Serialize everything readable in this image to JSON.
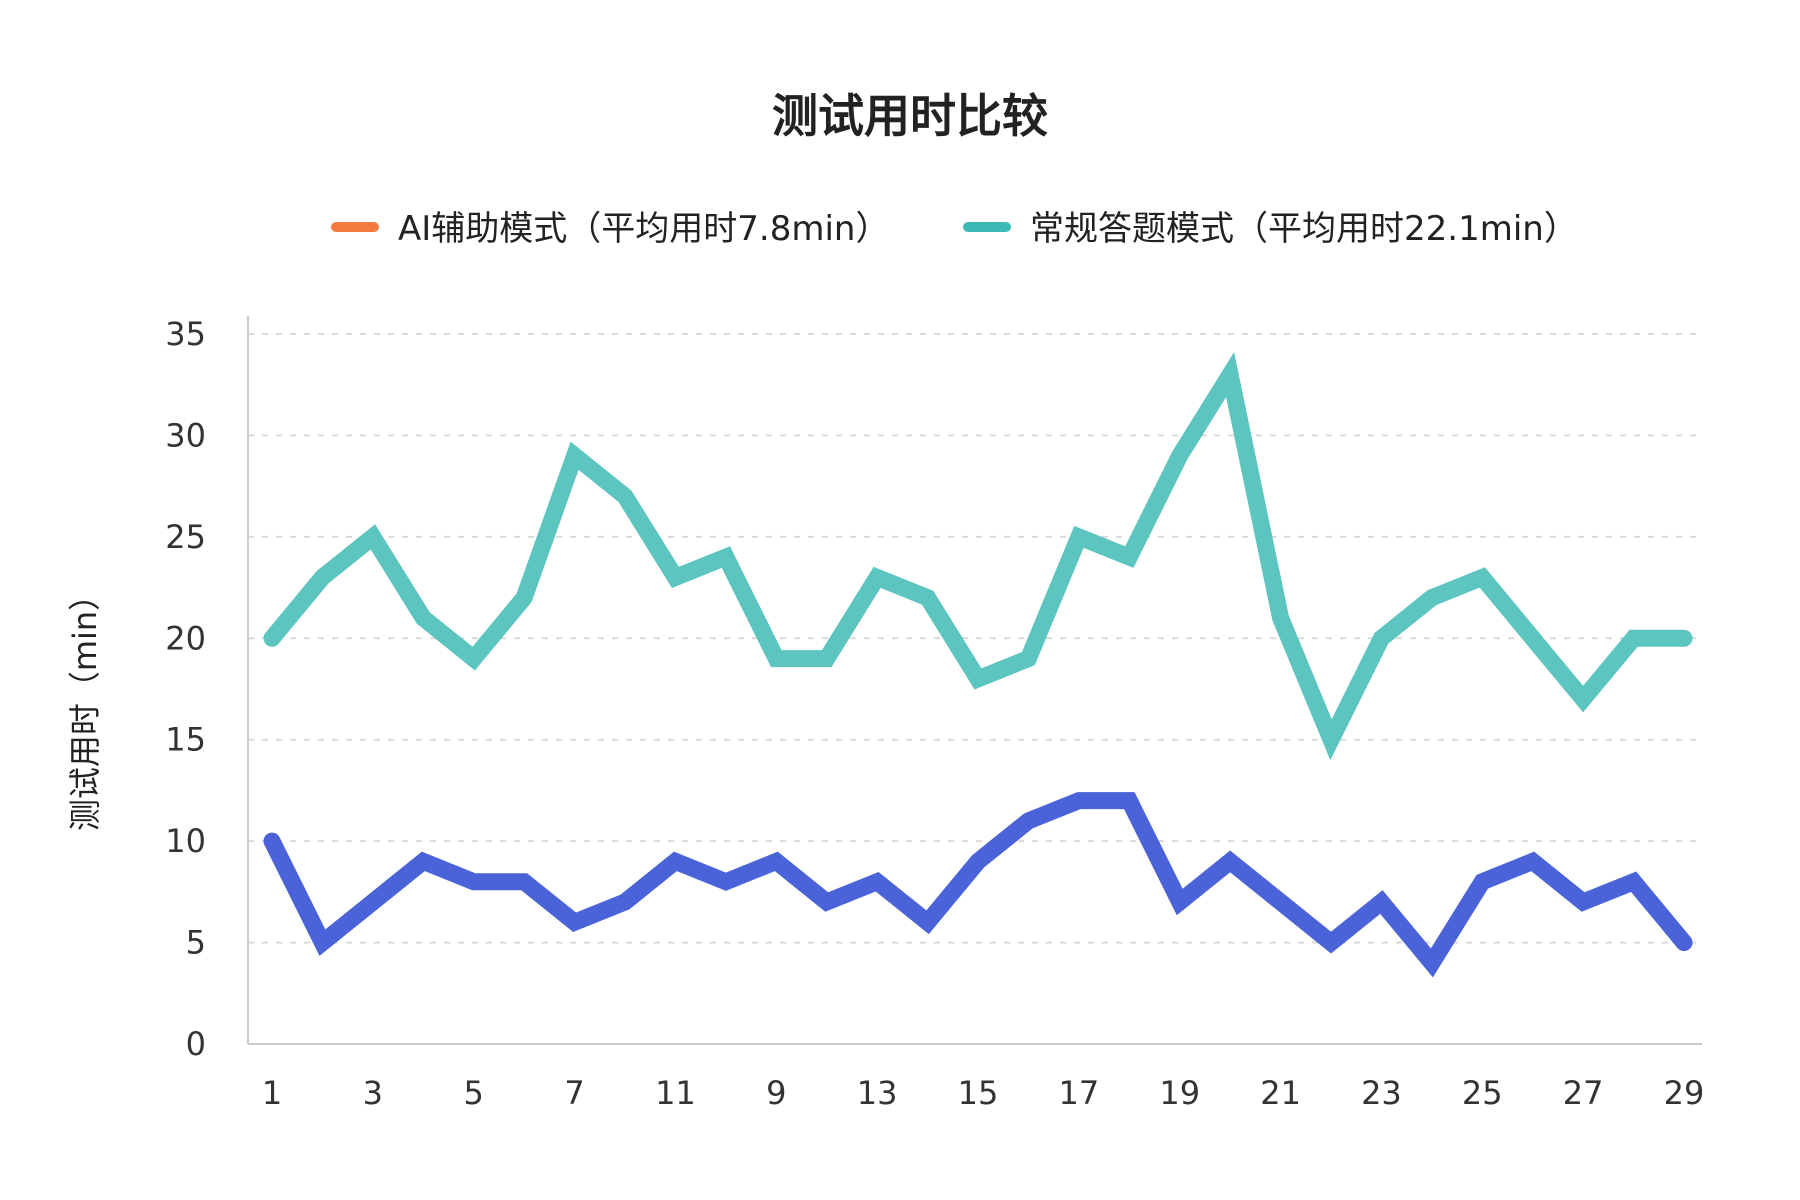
{
  "chart_data": {
    "type": "line",
    "title": "测试用时比较",
    "xlabel": "",
    "ylabel": "测试用时（min）",
    "ylim": [
      0,
      35
    ],
    "yticks": [
      0,
      5,
      10,
      15,
      20,
      25,
      30,
      35
    ],
    "x_tick_labels": [
      "1",
      "3",
      "5",
      "7",
      "11",
      "9",
      "13",
      "15",
      "17",
      "19",
      "21",
      "23",
      "25",
      "27",
      "29"
    ],
    "grid": true,
    "legend_position": "top-center",
    "series": [
      {
        "name": "AI辅助模式（平均用时7.8min）",
        "legend_color": "#f47a3f",
        "line_color": "#4a63d8",
        "values": [
          10,
          5,
          7,
          9,
          8,
          8,
          6,
          7,
          9,
          8,
          9,
          7,
          8,
          6,
          9,
          11,
          12,
          12,
          7,
          9,
          7,
          5,
          7,
          4,
          8,
          9,
          7,
          8,
          5
        ]
      },
      {
        "name": "常规答题模式（平均用时22.1min）",
        "legend_color": "#3dbab6",
        "line_color": "#5cc5c0",
        "values": [
          20,
          23,
          25,
          21,
          19,
          22,
          29,
          27,
          23,
          24,
          19,
          19,
          23,
          22,
          18,
          19,
          25,
          24,
          29,
          33,
          21,
          15,
          20,
          22,
          23,
          20,
          17,
          20,
          20
        ]
      }
    ]
  }
}
